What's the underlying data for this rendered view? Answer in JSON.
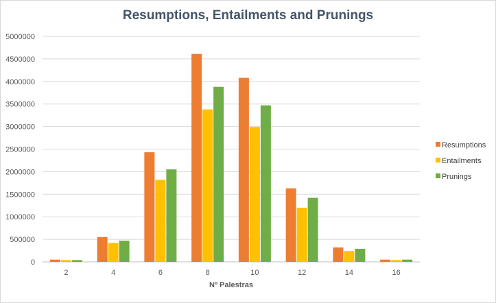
{
  "chart_data": {
    "type": "bar",
    "title": "Resumptions, Entailments and Prunings",
    "xlabel": "Nº Palestras",
    "ylabel": "",
    "categories": [
      "2",
      "4",
      "6",
      "8",
      "10",
      "12",
      "14",
      "16"
    ],
    "ylim": [
      0,
      5000000
    ],
    "yticks": [
      0,
      500000,
      1000000,
      1500000,
      2000000,
      2500000,
      3000000,
      3500000,
      4000000,
      4500000,
      5000000
    ],
    "grid": true,
    "legend": "right",
    "series": [
      {
        "name": "Resumptions",
        "color": "#ED7D31",
        "values": [
          50000,
          550000,
          2430000,
          4610000,
          4080000,
          1630000,
          320000,
          50000
        ]
      },
      {
        "name": "Entailments",
        "color": "#FFC000",
        "values": [
          40000,
          420000,
          1820000,
          3380000,
          2990000,
          1200000,
          240000,
          40000
        ]
      },
      {
        "name": "Prunings",
        "color": "#70AD47",
        "values": [
          40000,
          470000,
          2050000,
          3880000,
          3470000,
          1420000,
          290000,
          50000
        ]
      }
    ]
  }
}
